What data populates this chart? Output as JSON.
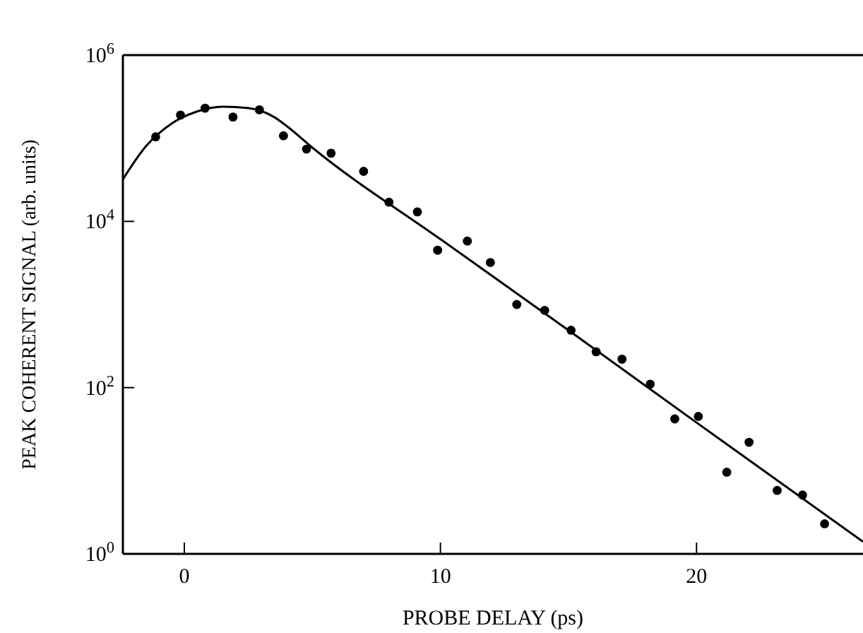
{
  "chart_data": {
    "type": "scatter",
    "xlabel": "PROBE DELAY (ps)",
    "ylabel": "PEAK COHERENT SIGNAL (arb. units)",
    "log": "y",
    "xlim": [
      -2.4,
      26.5
    ],
    "ylim": [
      1,
      1000000
    ],
    "xticks": [
      0,
      10,
      20
    ],
    "yticks": [
      {
        "value": 1,
        "label": "10$^{0}$"
      },
      {
        "value": 100,
        "label": "10$^{2}$"
      },
      {
        "value": 10000,
        "label": "10$^{4}$"
      },
      {
        "value": 1000000,
        "label": "10$^{6}$"
      }
    ],
    "grid": false,
    "legend": false,
    "series": [
      {
        "type": "scatter",
        "color": "#000000",
        "marker": "circle",
        "x": [
          -1.12,
          -0.15,
          0.81,
          1.9,
          2.93,
          3.87,
          4.77,
          5.73,
          7.0,
          7.99,
          9.1,
          9.89,
          11.05,
          11.95,
          12.98,
          14.07,
          15.1,
          16.08,
          17.09,
          18.19,
          19.15,
          20.07,
          21.18,
          22.05,
          23.15,
          24.14,
          25.0
        ],
        "values": [
          104000,
          190000,
          230000,
          180000,
          220000,
          107000,
          74000,
          66000,
          40000,
          17000,
          13000,
          4500,
          5800,
          3200,
          1000,
          850,
          490,
          270,
          220,
          110,
          42,
          45,
          9.6,
          22,
          5.8,
          5.1,
          2.3
        ]
      },
      {
        "type": "line",
        "color": "#000000",
        "marker": "none",
        "line_style": "solid",
        "x": [
          -2.4,
          -1.5,
          -0.5,
          0.5,
          1.5,
          2.5,
          3.5,
          4.0,
          5.0,
          10.0,
          15.0,
          20.0,
          26.5
        ],
        "values": [
          32000,
          80000,
          150000,
          210000,
          240000,
          230000,
          180000,
          140000,
          77000,
          6100,
          490,
          38,
          1.4
        ]
      }
    ]
  }
}
